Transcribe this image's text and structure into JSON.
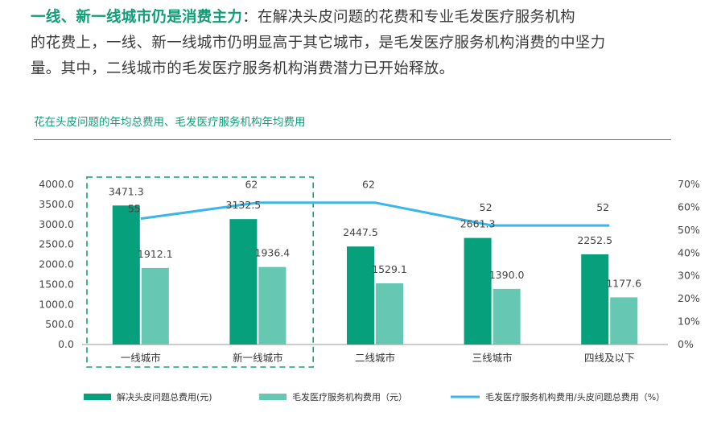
{
  "intro": {
    "highlight": "一线、新一线城市仍是消费主力",
    "text_line1": "：在解决头皮问题的花费和专业毛发医疗服务机构",
    "text_line2": "的花费上，一线、新一线城市仍明显高于其它城市，是毛发医疗服务机构消费的中坚力",
    "text_line3": "量。其中，二线城市的毛发医疗服务机构消费潜力已开始释放。"
  },
  "chart_data": {
    "type": "bar",
    "title": "花在头皮问题的年均总费用、毛发医疗服务机构年均费用",
    "categories": [
      "一线城市",
      "新一线城市",
      "二线城市",
      "三线城市",
      "四线及以下"
    ],
    "series": [
      {
        "name": "解决头皮问题总费用(元)",
        "values": [
          3471.3,
          3132.5,
          2447.5,
          2661.3,
          2252.5
        ],
        "value_labels": [
          "3471.3",
          "3132.5",
          "2447.5",
          "2661.3",
          "2252.5"
        ],
        "color": "#07a07c"
      },
      {
        "name": "毛发医疗服务机构费用（元）",
        "values": [
          1912.1,
          1936.4,
          1529.1,
          1390.0,
          1177.6
        ],
        "value_labels": [
          "1912.1",
          "1936.4",
          "1529.1",
          "1390.0",
          "1177.6"
        ],
        "color": "#66c7b2"
      },
      {
        "name": "毛发医疗服务机构费用/头皮问题总费用（%）",
        "values": [
          55,
          62,
          62,
          52,
          52
        ],
        "value_labels": [
          "55",
          "62",
          "62",
          "52",
          "52"
        ],
        "color": "#3bb5ea",
        "axis": "right"
      }
    ],
    "y_left": {
      "range": [
        0,
        4000
      ],
      "ticks": [
        "0.0",
        "500.0",
        "1000.0",
        "1500.0",
        "2000.0",
        "2500.0",
        "3000.0",
        "3500.0",
        "4000.0"
      ]
    },
    "y_right": {
      "range": [
        0,
        70
      ],
      "ticks": [
        "0%",
        "10%",
        "20%",
        "30%",
        "40%",
        "50%",
        "60%",
        "70%"
      ]
    },
    "highlight_box_categories": [
      "一线城市",
      "新一线城市"
    ],
    "legend_position": "bottom"
  }
}
